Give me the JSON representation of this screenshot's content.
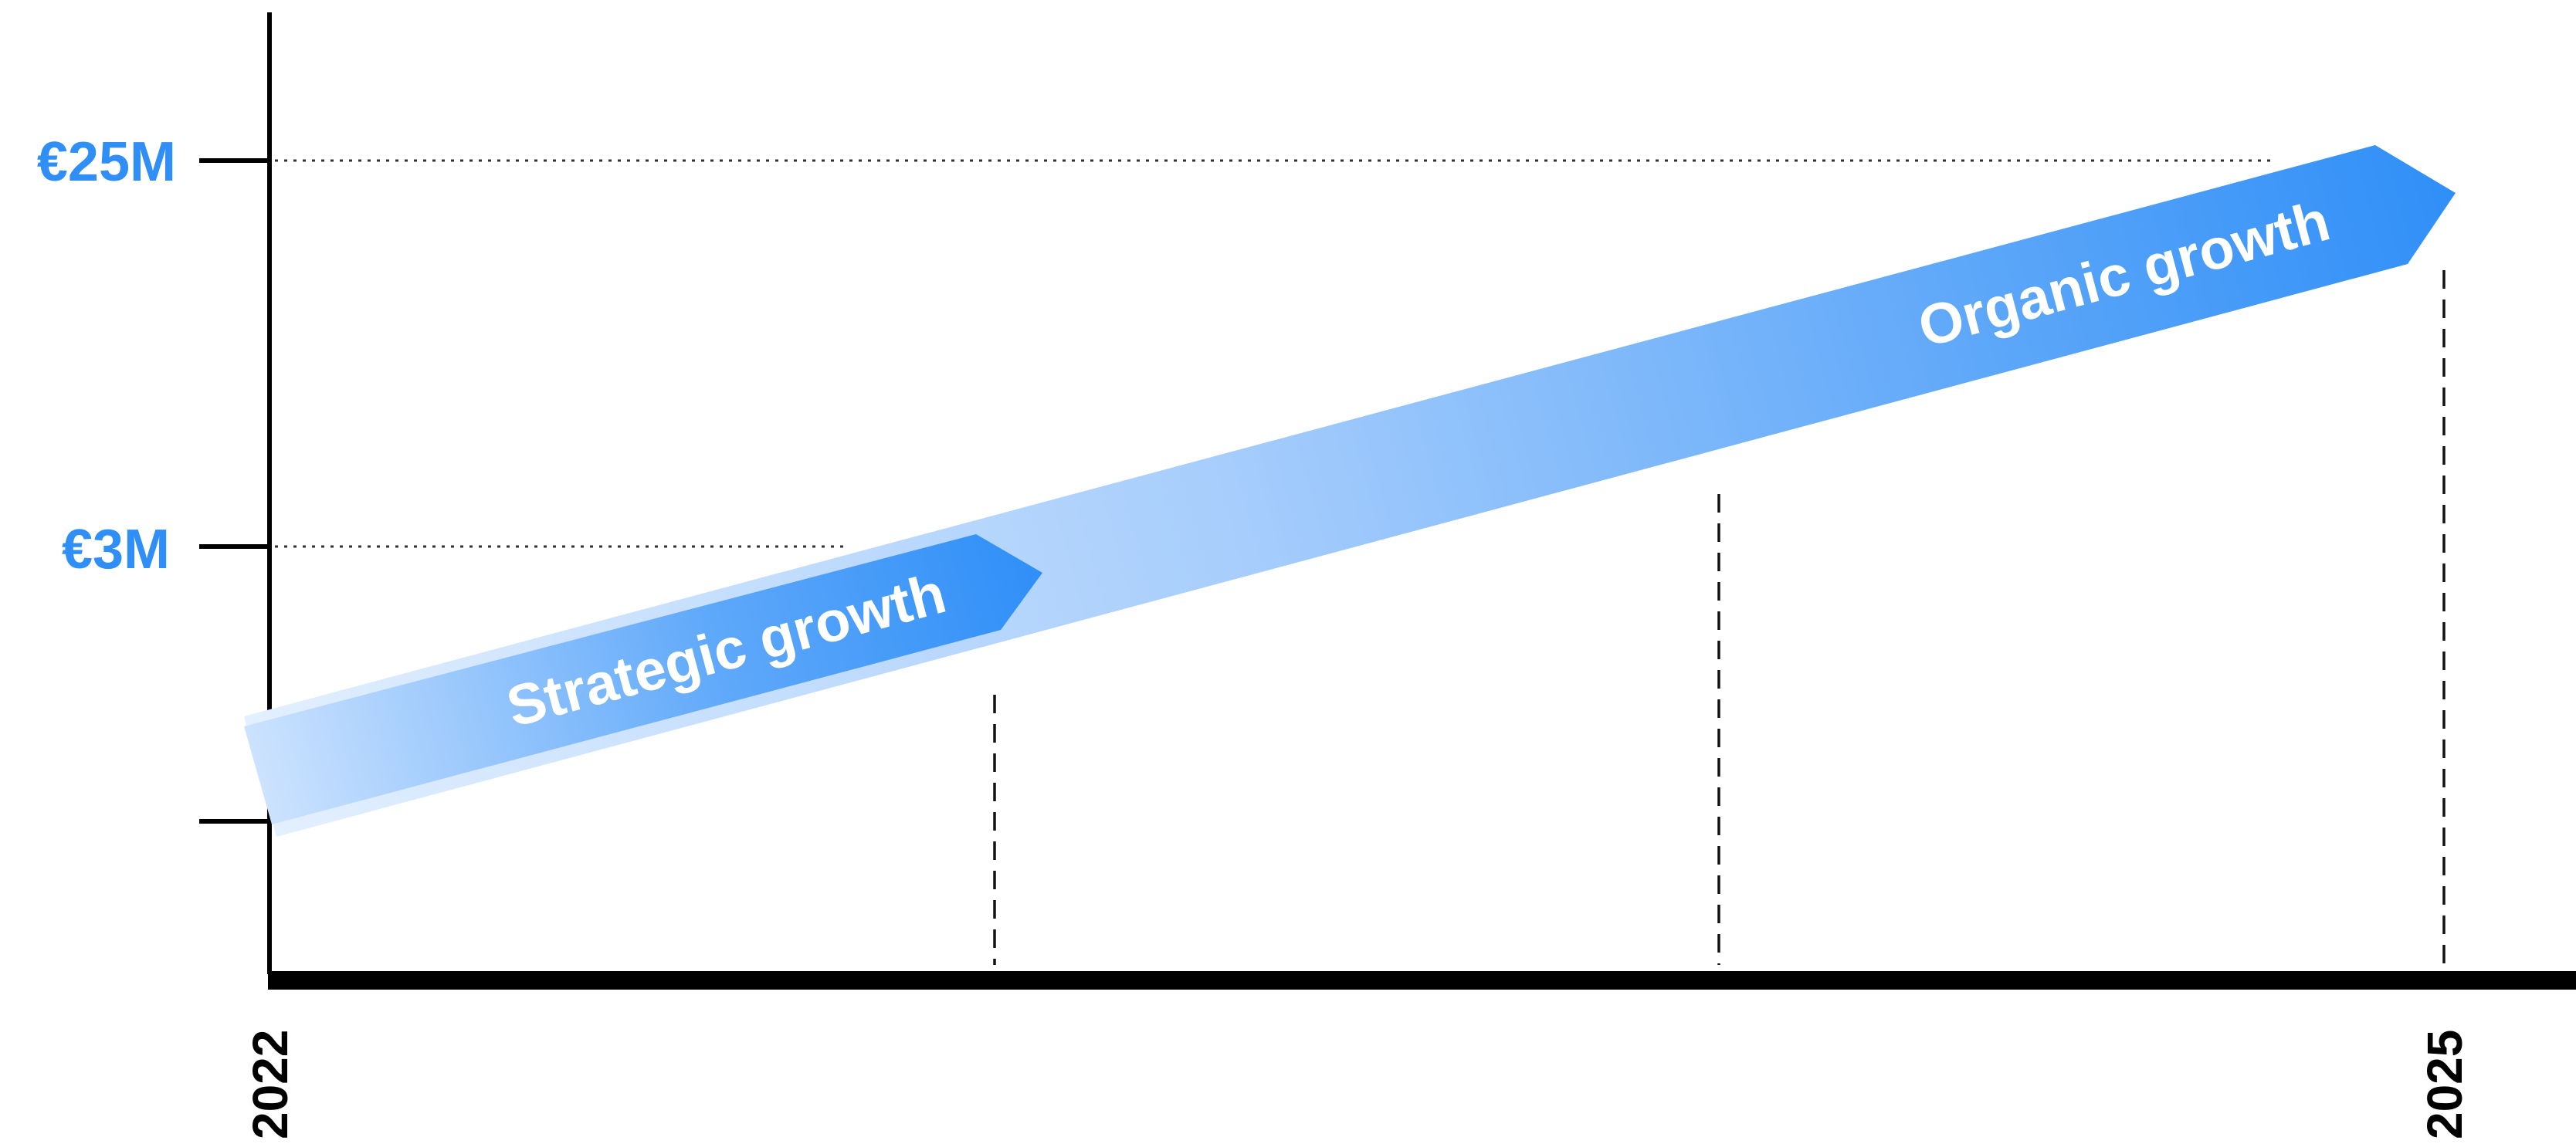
{
  "diagram": {
    "y_axis_labels": [
      {
        "label": "€25M",
        "value": 25
      },
      {
        "label": "€3M",
        "value": 3
      }
    ],
    "x_axis_labels": [
      {
        "label": "2022",
        "value": 2022
      },
      {
        "label": "2025",
        "value": 2025
      }
    ],
    "arrows": [
      {
        "label": "Organic growth"
      },
      {
        "label": "Strategic growth"
      }
    ],
    "colors": {
      "accent": "#2f8ff7",
      "accent_light": "#dcebff",
      "axis": "#000000",
      "label_text": "#ffffff"
    }
  }
}
